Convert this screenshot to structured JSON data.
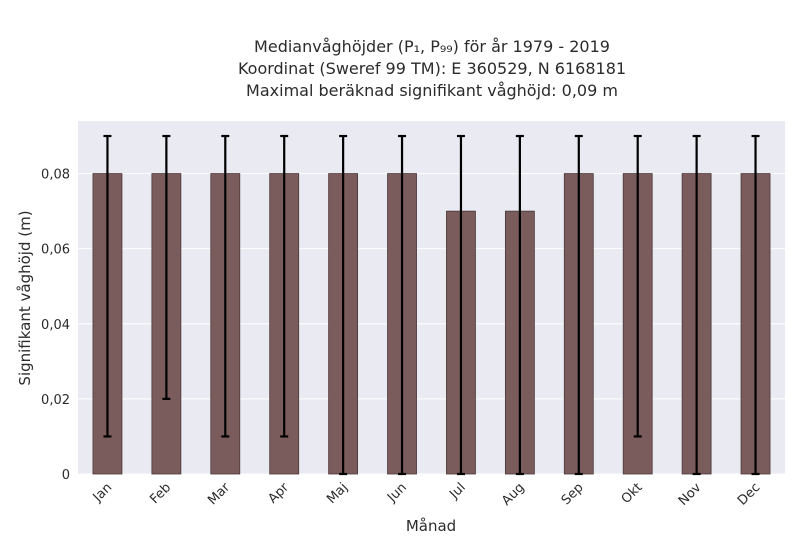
{
  "chart_data": {
    "type": "bar",
    "title_lines": [
      "Medianvåghöjder (P₁, P₉₉) för år 1979 - 2019",
      "Koordinat (Sweref 99 TM): E 360529, N 6168181",
      "Maximal beräknad signifikant våghöjd: 0,09 m"
    ],
    "xlabel": "Månad",
    "ylabel": "Signifikant våghöjd (m)",
    "categories": [
      "Jan",
      "Feb",
      "Mar",
      "Apr",
      "Maj",
      "Jun",
      "Jul",
      "Aug",
      "Sep",
      "Okt",
      "Nov",
      "Dec"
    ],
    "values": [
      0.08,
      0.08,
      0.08,
      0.08,
      0.08,
      0.08,
      0.07,
      0.07,
      0.08,
      0.08,
      0.08,
      0.08
    ],
    "error_low": [
      0.01,
      0.02,
      0.01,
      0.01,
      0.0,
      0.0,
      0.0,
      0.0,
      0.0,
      0.01,
      0.0,
      0.0
    ],
    "error_high": [
      0.09,
      0.09,
      0.09,
      0.09,
      0.09,
      0.09,
      0.09,
      0.09,
      0.09,
      0.09,
      0.09,
      0.09
    ],
    "ylim": [
      0,
      0.094
    ],
    "yticks": [
      0,
      0.02,
      0.04,
      0.06,
      0.08
    ],
    "ytick_labels": [
      "0",
      "0,02",
      "0,04",
      "0,06",
      "0,08"
    ],
    "grid": true,
    "colors": {
      "plot_background": "#eaeaf2",
      "bar_fill": "#7b5c5c",
      "bar_stroke": "#4a3838",
      "error_bar": "#000000",
      "grid": "#ffffff"
    }
  }
}
